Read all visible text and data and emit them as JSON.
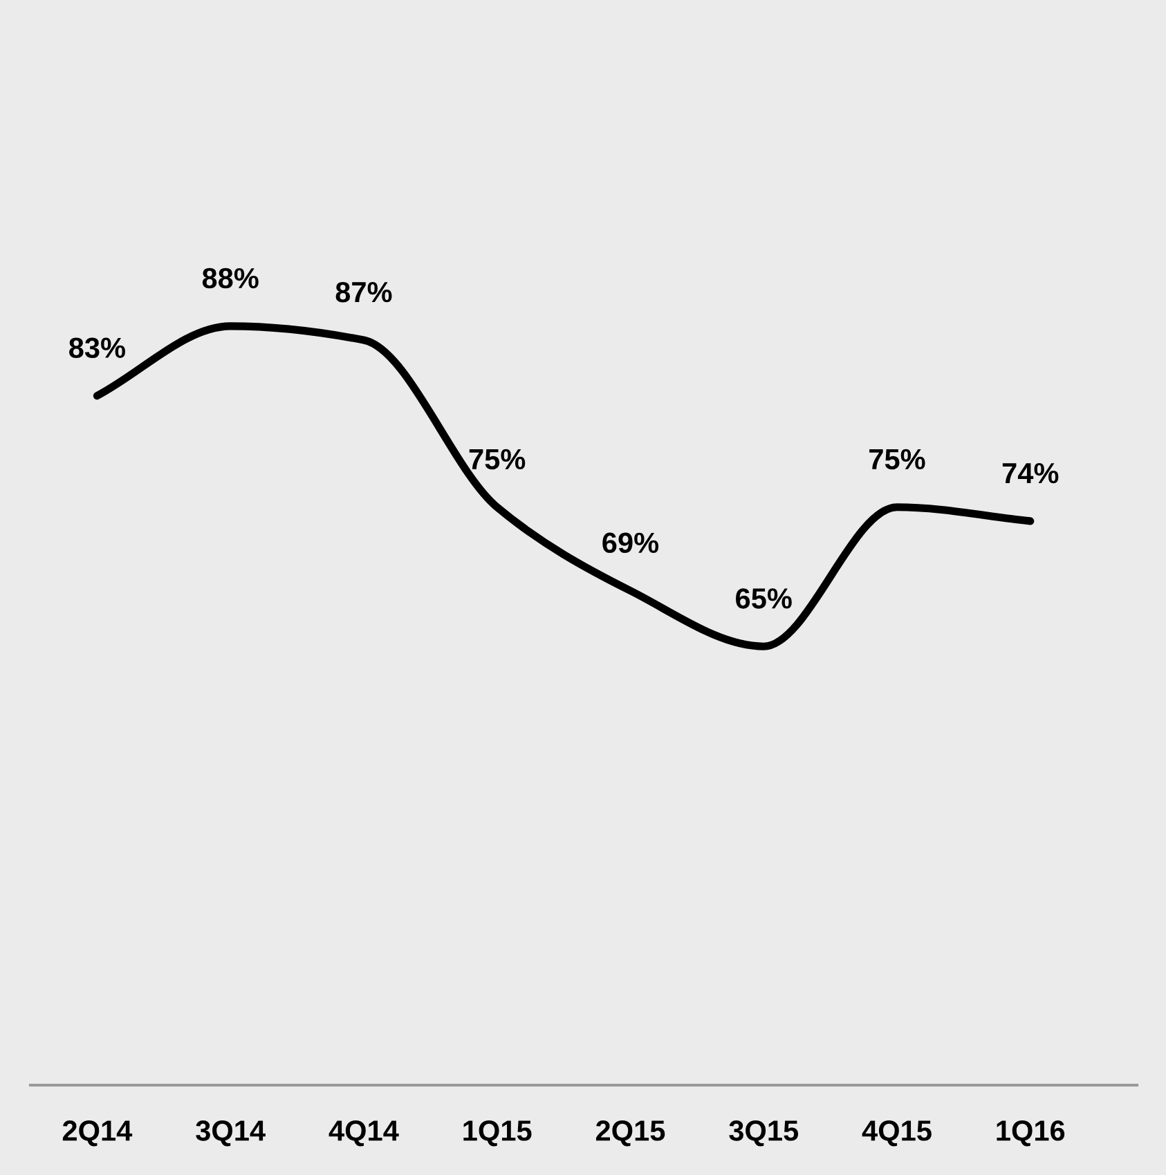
{
  "chart_data": {
    "type": "line",
    "categories": [
      "2Q14",
      "3Q14",
      "4Q14",
      "1Q15",
      "2Q15",
      "3Q15",
      "4Q15",
      "1Q16"
    ],
    "series": [
      {
        "color": "#000000",
        "values": [
          83,
          88,
          87,
          75,
          69,
          65,
          75,
          74
        ],
        "value_labels": [
          "83%",
          "88%",
          "87%",
          "75%",
          "69%",
          "65%",
          "75%",
          "74%"
        ]
      }
    ],
    "tick_labels": "x",
    "grid": false,
    "legend": false,
    "marker": "none",
    "line_style": "solid"
  }
}
